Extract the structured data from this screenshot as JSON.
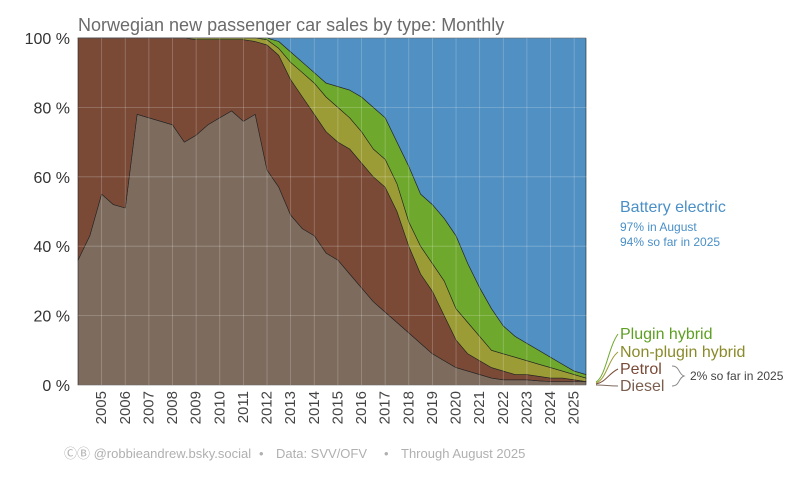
{
  "chart_data": {
    "type": "area",
    "title": "Norwegian new passenger car sales by type: Monthly",
    "ylim": [
      0,
      100
    ],
    "y_ticks": [
      "0 %",
      "20 %",
      "40 %",
      "60 %",
      "80 %",
      "100 %"
    ],
    "x_tick_labels": [
      "2005",
      "2006",
      "2007",
      "2008",
      "2009",
      "2010",
      "2011",
      "2012",
      "2013",
      "2014",
      "2015",
      "2016",
      "2017",
      "2018",
      "2019",
      "2020",
      "2021",
      "2022",
      "2023",
      "2024",
      "2025"
    ],
    "x_ticks": [
      2005,
      2006,
      2007,
      2008,
      2009,
      2010,
      2011,
      2012,
      2013,
      2014,
      2015,
      2016,
      2017,
      2018,
      2019,
      2020,
      2021,
      2022,
      2023,
      2024,
      2025
    ],
    "xlim": [
      2004.0,
      2025.67
    ],
    "stacking_order": [
      "Diesel",
      "Petrol",
      "Non-plugin hybrid",
      "Plugin hybrid",
      "Battery electric"
    ],
    "x": [
      2004.0,
      2004.5,
      2005.0,
      2005.5,
      2006.0,
      2006.5,
      2007.0,
      2007.5,
      2008.0,
      2008.5,
      2009.0,
      2009.5,
      2010.0,
      2010.5,
      2011.0,
      2011.5,
      2012.0,
      2012.5,
      2013.0,
      2013.5,
      2014.0,
      2014.5,
      2015.0,
      2015.5,
      2016.0,
      2016.5,
      2017.0,
      2017.5,
      2018.0,
      2018.5,
      2019.0,
      2019.5,
      2020.0,
      2020.5,
      2021.0,
      2021.5,
      2022.0,
      2022.5,
      2023.0,
      2023.5,
      2024.0,
      2024.5,
      2025.0,
      2025.5
    ],
    "cumulative_tops": {
      "Diesel": [
        36,
        43,
        55,
        52,
        51,
        78,
        77,
        76,
        75,
        70,
        72,
        75,
        77,
        79,
        76,
        78,
        62,
        57,
        49,
        45,
        43,
        38,
        36,
        32,
        28,
        24,
        21,
        18,
        15,
        12,
        9,
        7,
        5,
        4,
        3,
        2,
        1.5,
        1.5,
        1.5,
        1.2,
        1,
        1,
        1,
        1
      ],
      "Petrol": [
        100,
        100,
        100,
        100,
        100,
        100,
        100,
        100,
        100,
        100,
        99.5,
        99.5,
        99.5,
        99.5,
        99.5,
        99,
        98,
        95,
        88,
        83,
        78,
        73,
        70,
        68,
        64,
        60,
        57,
        50,
        40,
        32,
        27,
        20,
        13,
        9,
        7,
        5,
        4,
        3,
        3,
        2.5,
        2,
        2,
        1.5,
        1
      ],
      "Non-plugin hybrid": [
        100,
        100,
        100,
        100,
        100,
        100,
        100,
        100,
        100,
        100,
        100,
        100,
        100,
        100,
        100,
        100,
        99.5,
        97,
        93,
        90,
        87,
        83,
        80,
        77,
        73,
        68,
        65,
        58,
        47,
        40,
        35,
        30,
        22,
        18,
        14,
        10,
        9,
        8,
        7,
        6,
        5,
        4,
        3,
        2
      ],
      "Plugin hybrid": [
        100,
        100,
        100,
        100,
        100,
        100,
        100,
        100,
        100,
        100,
        100,
        100,
        100,
        100,
        100,
        100,
        100,
        99,
        96,
        93,
        90,
        87,
        86,
        85,
        83,
        80,
        77,
        70,
        63,
        55,
        52,
        48,
        43,
        35,
        28,
        22,
        17,
        14,
        12,
        10,
        8,
        6,
        4,
        3
      ],
      "Battery electric": [
        100,
        100,
        100,
        100,
        100,
        100,
        100,
        100,
        100,
        100,
        100,
        100,
        100,
        100,
        100,
        100,
        100,
        100,
        100,
        100,
        100,
        100,
        100,
        100,
        100,
        100,
        100,
        100,
        100,
        100,
        100,
        100,
        100,
        100,
        100,
        100,
        100,
        100,
        100,
        100,
        100,
        100,
        100,
        100
      ]
    },
    "colors": {
      "Diesel": "#7d6b5e",
      "Petrol": "#7a4a37",
      "Non-plugin hybrid": "#9c9c36",
      "Plugin hybrid": "#6ea82d",
      "Battery electric": "#5090c2"
    },
    "grid": true
  },
  "annotations": {
    "bev_label": "Battery electric",
    "bev_line1": "97% in August",
    "bev_line2": "94% so far in 2025",
    "phev_label": "Plugin hybrid",
    "hev_label": "Non-plugin hybrid",
    "petrol_label": "Petrol",
    "diesel_label": "Diesel",
    "bracket_note": "2% so far in 2025"
  },
  "footer": {
    "credit": "ⒸⒷ @robbieandrew.bsky.social",
    "dot1": "•",
    "source": "Data: SVV/OFV",
    "dot2": "•",
    "through": "Through August 2025"
  }
}
